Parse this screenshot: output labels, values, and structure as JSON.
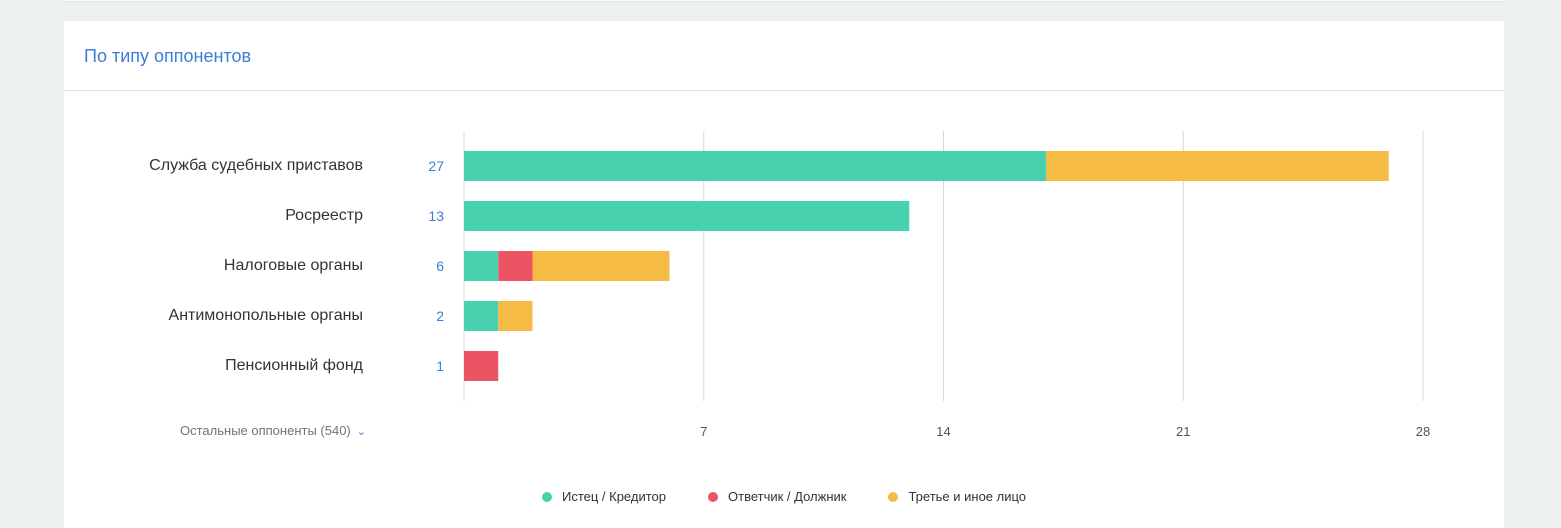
{
  "card": {
    "title": "По типу оппонентов"
  },
  "more": {
    "label": "Остальные оппоненты (540)"
  },
  "colors": {
    "plaintiff": "#48d1ae",
    "defendant": "#ec5464",
    "third": "#f5bb45",
    "grid": "#d5d8db"
  },
  "chart_data": {
    "type": "bar",
    "orientation": "horizontal",
    "stacked": true,
    "categories": [
      "Служба судебных приставов",
      "Росреестр",
      "Налоговые органы",
      "Антимонопольные органы",
      "Пенсионный фонд"
    ],
    "totals": [
      "27",
      "13",
      "6",
      "2",
      "1"
    ],
    "series": [
      {
        "name": "Истец / Кредитор",
        "values": [
          17,
          13,
          1,
          1,
          0
        ]
      },
      {
        "name": "Ответчик / Должник",
        "values": [
          0,
          0,
          1,
          0,
          1
        ]
      },
      {
        "name": "Третье и иное лицо",
        "values": [
          10,
          0,
          4,
          1,
          0
        ]
      }
    ],
    "xlim": [
      0,
      28
    ],
    "xticks": [
      "7",
      "14",
      "21",
      "28"
    ],
    "grid": true,
    "legend_position": "bottom"
  }
}
